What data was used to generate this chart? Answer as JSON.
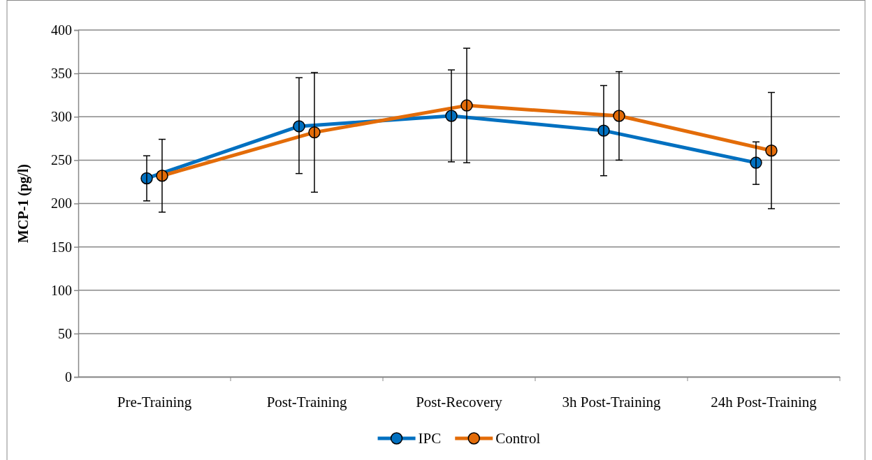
{
  "chart_data": {
    "type": "line",
    "ylabel": "MCP-1 (pg/l)",
    "categories": [
      "Pre-Training",
      "Post-Training",
      "Post-Recovery",
      "3h Post-Training",
      "24h Post-Training"
    ],
    "series": [
      {
        "name": "IPC",
        "color": "#0070c0",
        "values": [
          229,
          289,
          301,
          284,
          247
        ],
        "errors": [
          [
            203,
            255
          ],
          [
            234.5,
            345
          ],
          [
            248,
            354
          ],
          [
            232,
            336
          ],
          [
            222,
            271
          ]
        ]
      },
      {
        "name": "Control",
        "color": "#e36c09",
        "values": [
          232,
          282,
          313,
          301,
          261
        ],
        "errors": [
          [
            190,
            274
          ],
          [
            213,
            351
          ],
          [
            247,
            379
          ],
          [
            250,
            352
          ],
          [
            194,
            328
          ]
        ]
      }
    ],
    "ylim": [
      0,
      400
    ],
    "yticks": [
      0,
      50,
      100,
      150,
      200,
      250,
      300,
      350,
      400
    ],
    "grid": "y",
    "legend": "bottom",
    "marker": "circle",
    "line_style": "solid"
  }
}
